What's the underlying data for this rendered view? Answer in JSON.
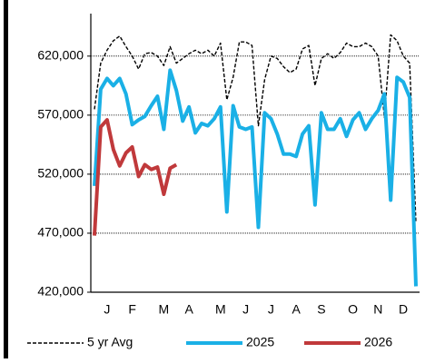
{
  "chart_data": {
    "type": "line",
    "categories": [
      null,
      null,
      "J",
      null,
      null,
      null,
      "F",
      null,
      null,
      null,
      null,
      "M",
      null,
      null,
      null,
      "A",
      null,
      null,
      null,
      null,
      "M",
      null,
      null,
      null,
      "J",
      null,
      null,
      null,
      "J",
      null,
      null,
      null,
      "A",
      null,
      null,
      null,
      "S",
      null,
      null,
      null,
      null,
      "O",
      null,
      null,
      null,
      "N",
      null,
      null,
      null,
      "D",
      null,
      null
    ],
    "series": [
      {
        "name": "5 yr Avg",
        "color": "#000000",
        "dash": true,
        "values": [
          575000,
          614000,
          625000,
          633000,
          637000,
          628000,
          620000,
          609000,
          622000,
          623000,
          620000,
          612000,
          628000,
          614000,
          618000,
          622000,
          625000,
          622000,
          625000,
          620000,
          631000,
          583000,
          602000,
          632000,
          632000,
          629000,
          561000,
          600000,
          620000,
          618000,
          611000,
          606000,
          609000,
          626000,
          629000,
          595000,
          618000,
          622000,
          618000,
          623000,
          631000,
          628000,
          628000,
          631000,
          628000,
          620000,
          568000,
          638000,
          633000,
          620000,
          614000,
          479000
        ]
      },
      {
        "name": "2025",
        "color": "#1ab0e6",
        "dash": false,
        "values": [
          510000,
          592000,
          601000,
          595000,
          601000,
          588000,
          562000,
          566000,
          569000,
          578000,
          586000,
          558000,
          608000,
          591000,
          565000,
          577000,
          555000,
          563000,
          561000,
          567000,
          577000,
          488000,
          578000,
          560000,
          558000,
          560000,
          475000,
          572000,
          567000,
          554000,
          537000,
          537000,
          535000,
          554000,
          561000,
          494000,
          572000,
          558000,
          558000,
          567000,
          552000,
          566000,
          572000,
          558000,
          567000,
          574000,
          588000,
          498000,
          602000,
          598000,
          585000,
          425000
        ]
      },
      {
        "name": "2026",
        "color": "#c0393b",
        "dash": false,
        "values": [
          468000,
          560000,
          566000,
          541000,
          527000,
          538000,
          543000,
          518000,
          528000,
          524000,
          526000,
          503000,
          525000,
          528000,
          null,
          null,
          null,
          null,
          null,
          null,
          null,
          null,
          null,
          null,
          null,
          null,
          null,
          null,
          null,
          null,
          null,
          null,
          null,
          null,
          null,
          null,
          null,
          null,
          null,
          null,
          null,
          null,
          null,
          null,
          null,
          null,
          null,
          null,
          null,
          null,
          null,
          null
        ]
      }
    ],
    "ylim": [
      420000,
      656000
    ],
    "yticks": [
      {
        "value": 420000,
        "label": "420,000"
      },
      {
        "value": 470000,
        "label": "470,000"
      },
      {
        "value": 520000,
        "label": "520,000"
      },
      {
        "value": 570000,
        "label": "570,000"
      },
      {
        "value": 620000,
        "label": "620,000"
      }
    ],
    "grid": true,
    "legend": "bottom"
  }
}
